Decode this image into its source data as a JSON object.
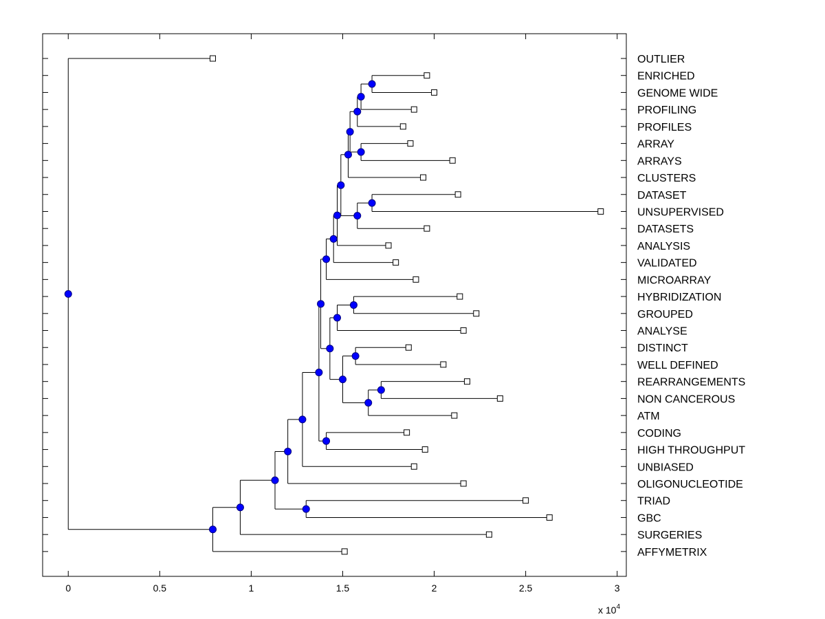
{
  "chart_data": {
    "type": "dendrogram",
    "orientation": "horizontal",
    "x_multiplier": "x 10",
    "x_multiplier_exponent": "4",
    "x_tick_labels": [
      "0",
      "0.5",
      "1",
      "1.5",
      "2",
      "2.5",
      "3"
    ],
    "x_ticks": [
      0,
      0.5,
      1,
      1.5,
      2,
      2.5,
      3
    ],
    "xlim": [
      -0.14,
      3.05
    ],
    "grid": false,
    "colors": {
      "node_fill": "#0000ff",
      "node_stroke": "#00007f",
      "leaf_fill": "#ffffff",
      "line": "#000000"
    },
    "leaves": [
      {
        "label": "OUTLIER",
        "x": 0.79
      },
      {
        "label": "ENRICHED",
        "x": 1.96
      },
      {
        "label": "GENOME WIDE",
        "x": 2.0
      },
      {
        "label": "PROFILING",
        "x": 1.89
      },
      {
        "label": "PROFILES",
        "x": 1.83
      },
      {
        "label": "ARRAY",
        "x": 1.87
      },
      {
        "label": "ARRAYS",
        "x": 2.1
      },
      {
        "label": "CLUSTERS",
        "x": 1.94
      },
      {
        "label": "DATASET",
        "x": 2.13
      },
      {
        "label": "UNSUPERVISED",
        "x": 2.91
      },
      {
        "label": "DATASETS",
        "x": 1.96
      },
      {
        "label": "ANALYSIS",
        "x": 1.75
      },
      {
        "label": "VALIDATED",
        "x": 1.79
      },
      {
        "label": "MICROARRAY",
        "x": 1.9
      },
      {
        "label": "HYBRIDIZATION",
        "x": 2.14
      },
      {
        "label": "GROUPED",
        "x": 2.23
      },
      {
        "label": "ANALYSE",
        "x": 2.16
      },
      {
        "label": "DISTINCT",
        "x": 1.86
      },
      {
        "label": "WELL DEFINED",
        "x": 2.05
      },
      {
        "label": "REARRANGEMENTS",
        "x": 2.18
      },
      {
        "label": "NON CANCEROUS",
        "x": 2.36
      },
      {
        "label": "ATM",
        "x": 2.11
      },
      {
        "label": "CODING",
        "x": 1.85
      },
      {
        "label": "HIGH THROUGHPUT",
        "x": 1.95
      },
      {
        "label": "UNBIASED",
        "x": 1.89
      },
      {
        "label": "OLIGONUCLEOTIDE",
        "x": 2.16
      },
      {
        "label": "TRIAD",
        "x": 2.5
      },
      {
        "label": "GBC",
        "x": 2.63
      },
      {
        "label": "SURGERIES",
        "x": 2.3
      },
      {
        "label": "AFFYMETRIX",
        "x": 1.51
      }
    ],
    "merges": [
      {
        "id": "M1",
        "x": 1.66,
        "children": [
          "L1",
          "L2"
        ]
      },
      {
        "id": "M2",
        "x": 1.6,
        "children": [
          "M1",
          "L3"
        ]
      },
      {
        "id": "M3",
        "x": 1.58,
        "children": [
          "M2",
          "L4"
        ]
      },
      {
        "id": "M4",
        "x": 1.6,
        "children": [
          "L5",
          "L6"
        ]
      },
      {
        "id": "M5",
        "x": 1.54,
        "children": [
          "M3",
          "M4"
        ]
      },
      {
        "id": "M6",
        "x": 1.53,
        "children": [
          "M5",
          "L7"
        ]
      },
      {
        "id": "M7",
        "x": 1.66,
        "children": [
          "L8",
          "L9"
        ]
      },
      {
        "id": "M8",
        "x": 1.58,
        "children": [
          "M7",
          "L10"
        ]
      },
      {
        "id": "M9",
        "x": 1.49,
        "children": [
          "M6",
          "M8"
        ]
      },
      {
        "id": "M10",
        "x": 1.47,
        "children": [
          "M9",
          "L11"
        ]
      },
      {
        "id": "M11",
        "x": 1.45,
        "children": [
          "M10",
          "L12"
        ]
      },
      {
        "id": "M12",
        "x": 1.41,
        "children": [
          "M11",
          "L13"
        ]
      },
      {
        "id": "M13",
        "x": 1.56,
        "children": [
          "L14",
          "L15"
        ]
      },
      {
        "id": "M14",
        "x": 1.47,
        "children": [
          "M13",
          "L16"
        ]
      },
      {
        "id": "M15",
        "x": 1.57,
        "children": [
          "L17",
          "L18"
        ]
      },
      {
        "id": "M16",
        "x": 1.71,
        "children": [
          "L19",
          "L20"
        ]
      },
      {
        "id": "M17",
        "x": 1.64,
        "children": [
          "M16",
          "L21"
        ]
      },
      {
        "id": "M18",
        "x": 1.5,
        "children": [
          "M15",
          "M17"
        ]
      },
      {
        "id": "M19",
        "x": 1.43,
        "children": [
          "M14",
          "M18"
        ]
      },
      {
        "id": "M20",
        "x": 1.38,
        "children": [
          "M12",
          "M19"
        ]
      },
      {
        "id": "M21",
        "x": 1.41,
        "children": [
          "L22",
          "L23"
        ]
      },
      {
        "id": "M22",
        "x": 1.37,
        "children": [
          "M20",
          "M21"
        ]
      },
      {
        "id": "M23",
        "x": 1.28,
        "children": [
          "M22",
          "L24"
        ]
      },
      {
        "id": "M24",
        "x": 1.2,
        "children": [
          "M23",
          "L25"
        ]
      },
      {
        "id": "M25",
        "x": 1.3,
        "children": [
          "L26",
          "L27"
        ]
      },
      {
        "id": "M26",
        "x": 1.13,
        "children": [
          "M24",
          "M25"
        ]
      },
      {
        "id": "M27",
        "x": 0.94,
        "children": [
          "M26",
          "L28"
        ]
      },
      {
        "id": "M28",
        "x": 0.79,
        "children": [
          "M27",
          "L29"
        ]
      },
      {
        "id": "M29",
        "x": 0.0,
        "children": [
          "L0",
          "M28"
        ]
      }
    ]
  }
}
